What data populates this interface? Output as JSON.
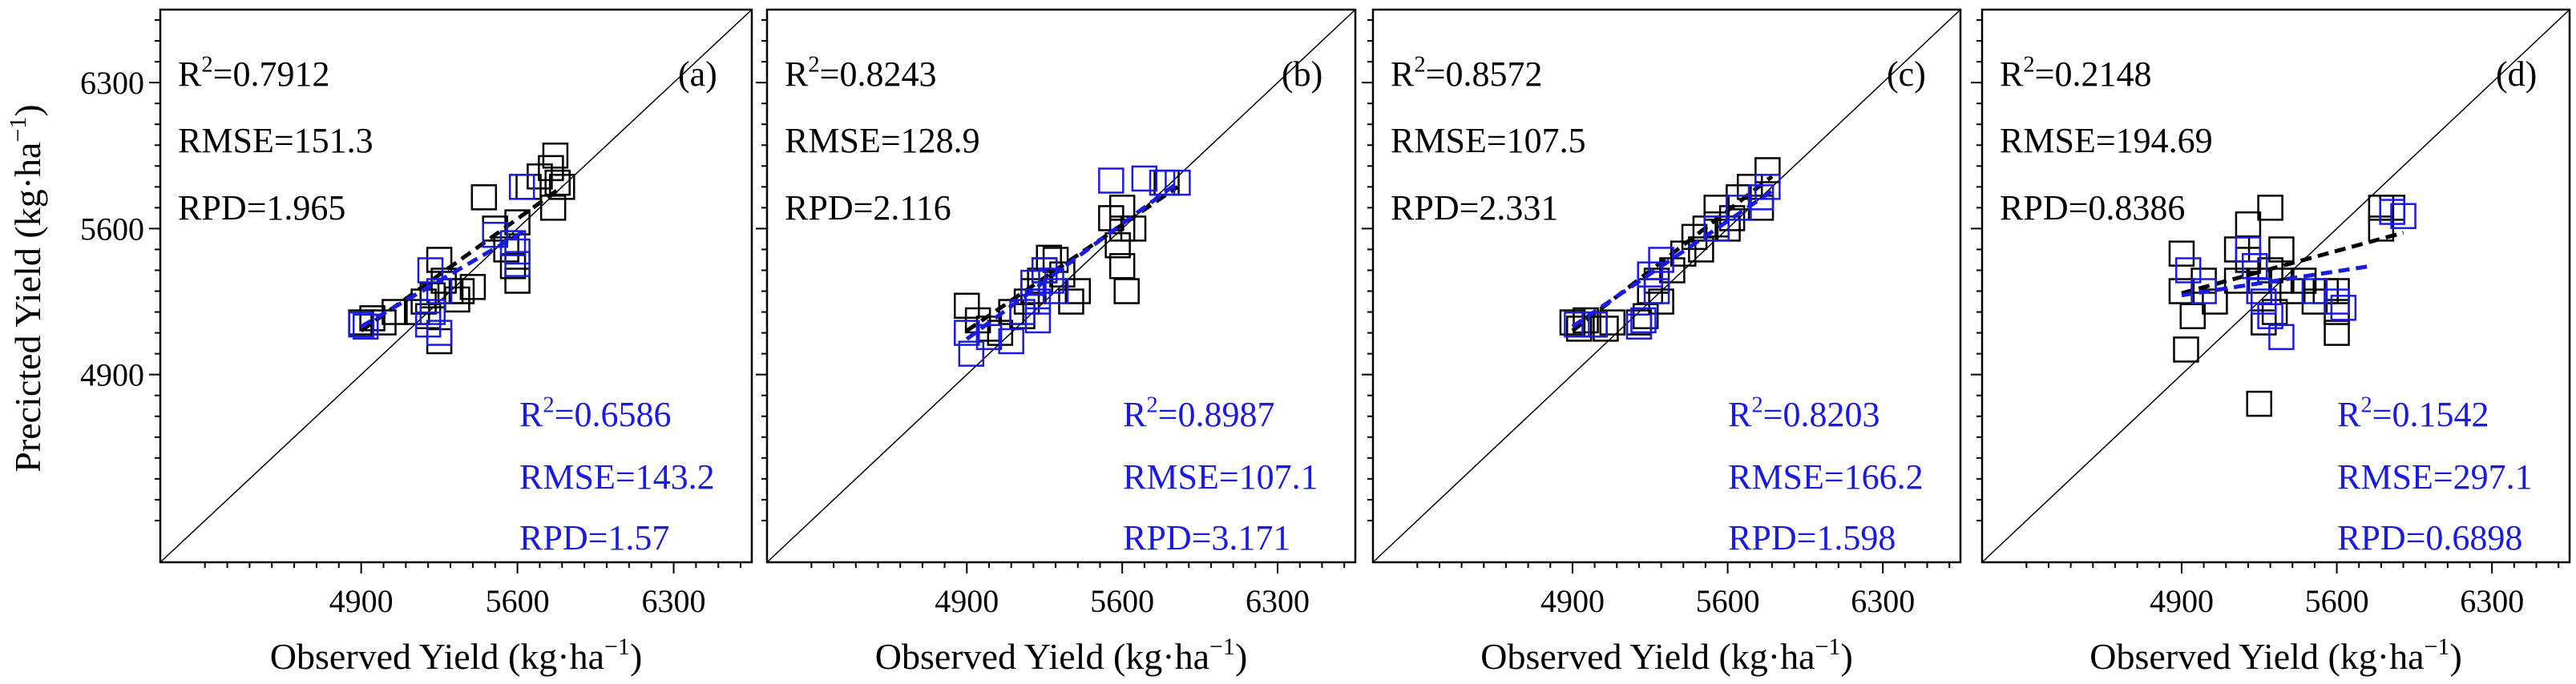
{
  "figure": {
    "ylabel": "Precicted Yield (kg·ha",
    "ylabel_sup": "−1",
    "ylabel_tail": ")",
    "xlabel": "Observed Yield (kg·ha",
    "xlabel_sup": "−1",
    "xlabel_tail": ")",
    "colors": {
      "calibration": "#000000",
      "validation": "#1a1ae6",
      "axis": "#000000"
    }
  },
  "chart_data": [
    {
      "type": "scatter",
      "panel_label": "(a)",
      "xlim": [
        4000,
        6650
      ],
      "ylim": [
        4000,
        6650
      ],
      "xticks": [
        "4900",
        "5600",
        "6300"
      ],
      "yticks": [
        "4900",
        "5600",
        "6300"
      ],
      "stats_black": {
        "r2_prefix": "R",
        "r2_sup": "2",
        "r2_value": "=0.7912",
        "rmse": "RMSE=151.3",
        "rpd": "RPD=1.965"
      },
      "stats_blue": {
        "r2_prefix": "R",
        "r2_sup": "2",
        "r2_value": "=0.6586",
        "rmse": "RMSE=143.2",
        "rpd": "RPD=1.57"
      },
      "calibration_points": [
        [
          4900,
          5150
        ],
        [
          4950,
          5170
        ],
        [
          5000,
          5150
        ],
        [
          5050,
          5200
        ],
        [
          5150,
          5200
        ],
        [
          5180,
          5250
        ],
        [
          5200,
          5180
        ],
        [
          5220,
          5280
        ],
        [
          5250,
          5060
        ],
        [
          5250,
          5450
        ],
        [
          5270,
          5350
        ],
        [
          5300,
          5300
        ],
        [
          5330,
          5260
        ],
        [
          5350,
          5300
        ],
        [
          5400,
          5320
        ],
        [
          5450,
          5750
        ],
        [
          5500,
          5600
        ],
        [
          5550,
          5500
        ],
        [
          5580,
          5420
        ],
        [
          5600,
          5350
        ],
        [
          5600,
          5630
        ],
        [
          5650,
          5800
        ],
        [
          5700,
          5850
        ],
        [
          5750,
          5890
        ],
        [
          5780,
          5820
        ],
        [
          5760,
          5700
        ],
        [
          5800,
          5800
        ],
        [
          5770,
          5950
        ]
      ],
      "validation_points": [
        [
          4900,
          5140
        ],
        [
          4920,
          5130
        ],
        [
          5200,
          5140
        ],
        [
          5210,
          5400
        ],
        [
          5220,
          5200
        ],
        [
          5250,
          5300
        ],
        [
          5250,
          5100
        ],
        [
          5500,
          5570
        ],
        [
          5580,
          5530
        ],
        [
          5600,
          5430
        ],
        [
          5600,
          5490
        ],
        [
          5620,
          5800
        ]
      ],
      "calibration_fit": [
        [
          4900,
          5110
        ],
        [
          5800,
          5800
        ]
      ],
      "validation_fit": [
        [
          4900,
          5130
        ],
        [
          5650,
          5600
        ]
      ]
    },
    {
      "type": "scatter",
      "panel_label": "(b)",
      "xlim": [
        4000,
        6650
      ],
      "ylim": [
        4000,
        6650
      ],
      "xticks": [
        "4900",
        "5600",
        "6300"
      ],
      "yticks": [
        "4900",
        "5600",
        "6300"
      ],
      "stats_black": {
        "r2_prefix": "R",
        "r2_sup": "2",
        "r2_value": "=0.8243",
        "rmse": "RMSE=128.9",
        "rpd": "RPD=2.116"
      },
      "stats_blue": {
        "r2_prefix": "R",
        "r2_sup": "2",
        "r2_value": "=0.8987",
        "rmse": "RMSE=107.1",
        "rpd": "RPD=3.171"
      },
      "calibration_points": [
        [
          4900,
          5230
        ],
        [
          4950,
          5160
        ],
        [
          5000,
          5120
        ],
        [
          5050,
          5100
        ],
        [
          5100,
          5200
        ],
        [
          5150,
          5180
        ],
        [
          5170,
          5250
        ],
        [
          5200,
          5300
        ],
        [
          5230,
          5350
        ],
        [
          5250,
          5400
        ],
        [
          5270,
          5460
        ],
        [
          5300,
          5450
        ],
        [
          5330,
          5380
        ],
        [
          5370,
          5250
        ],
        [
          5400,
          5300
        ],
        [
          5550,
          5650
        ],
        [
          5580,
          5520
        ],
        [
          5600,
          5420
        ],
        [
          5600,
          5600
        ],
        [
          5600,
          5700
        ],
        [
          5620,
          5300
        ],
        [
          5650,
          5600
        ],
        [
          5800,
          5820
        ]
      ],
      "validation_points": [
        [
          4900,
          5100
        ],
        [
          4920,
          5000
        ],
        [
          5000,
          5080
        ],
        [
          5100,
          5060
        ],
        [
          5150,
          5200
        ],
        [
          5200,
          5340
        ],
        [
          5220,
          5160
        ],
        [
          5220,
          5250
        ],
        [
          5250,
          5400
        ],
        [
          5280,
          5350
        ],
        [
          5300,
          5300
        ],
        [
          5550,
          5830
        ],
        [
          5700,
          5840
        ],
        [
          5780,
          5820
        ],
        [
          5850,
          5820
        ]
      ],
      "calibration_fit": [
        [
          4900,
          5110
        ],
        [
          5850,
          5800
        ]
      ],
      "validation_fit": [
        [
          4900,
          5070
        ],
        [
          5850,
          5820
        ]
      ]
    },
    {
      "type": "scatter",
      "panel_label": "(c)",
      "xlim": [
        4000,
        6650
      ],
      "ylim": [
        4000,
        6650
      ],
      "xticks": [
        "4900",
        "5600",
        "6300"
      ],
      "yticks": [
        "4900",
        "5600",
        "6300"
      ],
      "stats_black": {
        "r2_prefix": "R",
        "r2_sup": "2",
        "r2_value": "=0.8572",
        "rmse": "RMSE=107.5",
        "rpd": "RPD=2.331"
      },
      "stats_blue": {
        "r2_prefix": "R",
        "r2_sup": "2",
        "r2_value": "=0.8203",
        "rmse": "RMSE=166.2",
        "rpd": "RPD=1.598"
      },
      "calibration_points": [
        [
          4900,
          5150
        ],
        [
          4930,
          5120
        ],
        [
          4960,
          5160
        ],
        [
          5000,
          5140
        ],
        [
          5050,
          5120
        ],
        [
          5080,
          5150
        ],
        [
          5200,
          5150
        ],
        [
          5230,
          5180
        ],
        [
          5250,
          5300
        ],
        [
          5280,
          5350
        ],
        [
          5300,
          5250
        ],
        [
          5350,
          5400
        ],
        [
          5400,
          5480
        ],
        [
          5450,
          5560
        ],
        [
          5480,
          5500
        ],
        [
          5500,
          5600
        ],
        [
          5550,
          5620
        ],
        [
          5550,
          5700
        ],
        [
          5600,
          5600
        ],
        [
          5620,
          5650
        ],
        [
          5650,
          5750
        ],
        [
          5700,
          5800
        ],
        [
          5750,
          5700
        ],
        [
          5780,
          5880
        ]
      ],
      "validation_points": [
        [
          4920,
          5140
        ],
        [
          5000,
          5140
        ],
        [
          5200,
          5130
        ],
        [
          5220,
          5160
        ],
        [
          5250,
          5380
        ],
        [
          5280,
          5300
        ],
        [
          5300,
          5450
        ],
        [
          5550,
          5600
        ],
        [
          5650,
          5700
        ],
        [
          5750,
          5750
        ],
        [
          5780,
          5800
        ]
      ],
      "calibration_fit": [
        [
          4900,
          5110
        ],
        [
          5800,
          5850
        ]
      ],
      "validation_fit": [
        [
          4900,
          5130
        ],
        [
          5800,
          5780
        ]
      ]
    },
    {
      "type": "scatter",
      "panel_label": "(d)",
      "xlim": [
        4000,
        6650
      ],
      "ylim": [
        4000,
        6650
      ],
      "xticks": [
        "4900",
        "5600",
        "6300"
      ],
      "yticks": [
        "4900",
        "5600",
        "6300"
      ],
      "stats_black": {
        "r2_prefix": "R",
        "r2_sup": "2",
        "r2_value": "=0.2148",
        "rmse": "RMSE=194.69",
        "rpd": "RPD=0.8386"
      },
      "stats_blue": {
        "r2_prefix": "R",
        "r2_sup": "2",
        "r2_value": "=0.1542",
        "rmse": "RMSE=297.1",
        "rpd": "RPD=0.6898"
      },
      "calibration_points": [
        [
          4900,
          5480
        ],
        [
          4900,
          5300
        ],
        [
          4920,
          5020
        ],
        [
          4950,
          5180
        ],
        [
          5000,
          5350
        ],
        [
          5050,
          5250
        ],
        [
          5150,
          5500
        ],
        [
          5150,
          5350
        ],
        [
          5200,
          5620
        ],
        [
          5200,
          5450
        ],
        [
          5250,
          5350
        ],
        [
          5270,
          5150
        ],
        [
          5300,
          5700
        ],
        [
          5300,
          5400
        ],
        [
          5320,
          5200
        ],
        [
          5350,
          5500
        ],
        [
          5350,
          5350
        ],
        [
          5400,
          5300
        ],
        [
          5450,
          5350
        ],
        [
          5500,
          5250
        ],
        [
          5550,
          5300
        ],
        [
          5600,
          5300
        ],
        [
          5600,
          5200
        ],
        [
          5600,
          5100
        ],
        [
          5800,
          5700
        ],
        [
          5800,
          5600
        ],
        [
          5850,
          5700
        ],
        [
          5250,
          4760
        ]
      ],
      "validation_points": [
        [
          4930,
          5400
        ],
        [
          5000,
          5300
        ],
        [
          5200,
          5500
        ],
        [
          5230,
          5420
        ],
        [
          5250,
          5300
        ],
        [
          5270,
          5250
        ],
        [
          5300,
          5180
        ],
        [
          5350,
          5080
        ],
        [
          5500,
          5300
        ],
        [
          5600,
          5250
        ],
        [
          5630,
          5220
        ],
        [
          5850,
          5680
        ],
        [
          5900,
          5660
        ]
      ],
      "calibration_fit": [
        [
          4900,
          5290
        ],
        [
          5900,
          5580
        ]
      ],
      "validation_fit": [
        [
          4900,
          5280
        ],
        [
          5750,
          5420
        ]
      ]
    }
  ]
}
